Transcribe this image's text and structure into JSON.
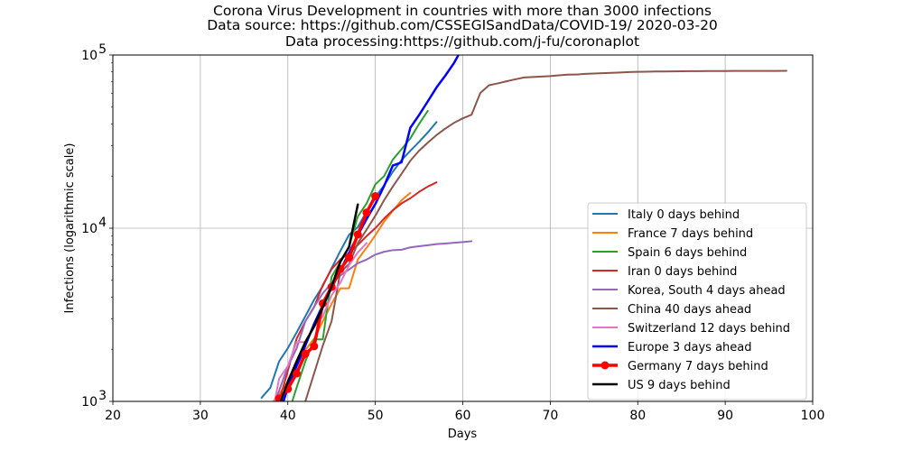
{
  "chart_data": {
    "type": "line",
    "title": [
      "Corona Virus Development in countries with more than 3000 infections",
      "Data source: https://github.com/CSSEGISandData/COVID-19/ 2020-03-20",
      "Data processing:https://github.com/j-fu/coronaplot"
    ],
    "xlabel": "Days",
    "ylabel": "Infections (logarithmic scale)",
    "xlim": [
      20,
      100
    ],
    "ylim": [
      1000,
      100000
    ],
    "yscale": "log",
    "xticks": [
      20,
      30,
      40,
      50,
      60,
      70,
      80,
      90,
      100
    ],
    "yticks": [
      {
        "value": 1000,
        "base": "10",
        "exp": "3"
      },
      {
        "value": 10000,
        "base": "10",
        "exp": "4"
      },
      {
        "value": 100000,
        "base": "10",
        "exp": "5"
      }
    ],
    "grid": true,
    "legend_position": "lower-right",
    "series": [
      {
        "name": "Italy 0 days behind",
        "color": "#1f77b4",
        "width": 2,
        "marker": false,
        "x": [
          37,
          38,
          39,
          40,
          41,
          42,
          43,
          44,
          45,
          46,
          47,
          48,
          49,
          50,
          51,
          52,
          53,
          54,
          55,
          56,
          57
        ],
        "y": [
          1050,
          1200,
          1700,
          2030,
          2500,
          3100,
          3860,
          4640,
          5880,
          7380,
          9170,
          10150,
          12460,
          15110,
          17660,
          21160,
          24750,
          27980,
          31510,
          35710,
          41040
        ]
      },
      {
        "name": "France 7 days behind",
        "color": "#ff7f0e",
        "width": 2,
        "marker": false,
        "x": [
          38,
          39,
          40,
          41,
          42,
          43,
          44,
          45,
          46,
          47,
          48,
          49,
          50,
          51,
          52,
          53,
          54
        ],
        "y": [
          950,
          1100,
          1300,
          1600,
          1980,
          2300,
          2900,
          3660,
          4500,
          4500,
          6600,
          7700,
          9100,
          10900,
          12600,
          14500,
          16000
        ]
      },
      {
        "name": "Spain 6 days behind",
        "color": "#2ca02c",
        "width": 2,
        "marker": false,
        "x": [
          40.5,
          41,
          42,
          43,
          44,
          45,
          46,
          47,
          48,
          49,
          50,
          51,
          52,
          53,
          54,
          55,
          56
        ],
        "y": [
          1000,
          1200,
          1700,
          2280,
          2280,
          5230,
          6390,
          7800,
          11700,
          13900,
          17900,
          19980,
          24900,
          28600,
          33000,
          40000,
          47600
        ]
      },
      {
        "name": "Iran 0 days behind",
        "color": "#d62728",
        "width": 2,
        "marker": false,
        "x": [
          39,
          40,
          41,
          42,
          43,
          44,
          45,
          46,
          47,
          48,
          49,
          50,
          51,
          52,
          53,
          54,
          55,
          56,
          57
        ],
        "y": [
          1000,
          1500,
          2300,
          2900,
          3500,
          4700,
          5800,
          6600,
          7200,
          8000,
          9000,
          10000,
          11360,
          12700,
          13900,
          14900,
          16200,
          17400,
          18400
        ]
      },
      {
        "name": "Korea, South 4 days ahead",
        "color": "#9467bd",
        "width": 2,
        "marker": false,
        "x": [
          38.5,
          39,
          40,
          41,
          42,
          43,
          44,
          45,
          46,
          47,
          48,
          49,
          50,
          51,
          52,
          53,
          54,
          55,
          56,
          57,
          58,
          59,
          60,
          61
        ],
        "y": [
          1000,
          1150,
          1590,
          2020,
          2900,
          3520,
          4210,
          4810,
          5330,
          5770,
          6280,
          6590,
          7040,
          7310,
          7470,
          7510,
          7750,
          7870,
          7980,
          8090,
          8160,
          8240,
          8320,
          8410
        ]
      },
      {
        "name": "China 40 days ahead",
        "color": "#8c564b",
        "width": 2,
        "marker": false,
        "x": [
          42,
          43,
          44,
          45,
          46,
          47,
          48,
          49,
          50,
          51,
          52,
          53,
          54,
          55,
          56,
          57,
          58,
          59,
          60,
          61,
          62,
          63,
          64,
          65,
          66,
          67,
          68,
          69,
          70,
          71,
          72,
          73,
          74,
          75,
          76,
          77,
          78,
          79,
          80,
          81,
          82,
          83,
          84,
          85,
          86,
          87,
          88,
          89,
          90,
          91,
          92,
          93,
          94,
          95,
          96,
          97
        ],
        "y": [
          1000,
          1450,
          2100,
          2900,
          5600,
          6200,
          8200,
          9800,
          11800,
          14500,
          17400,
          20600,
          24500,
          28000,
          31200,
          34500,
          37600,
          40600,
          43100,
          45200,
          60300,
          66900,
          68600,
          70500,
          72400,
          74200,
          74700,
          75100,
          75600,
          76400,
          77000,
          77200,
          77800,
          78200,
          78600,
          78900,
          79300,
          79800,
          80000,
          80100,
          80300,
          80400,
          80500,
          80600,
          80700,
          80700,
          80800,
          80800,
          80800,
          80900,
          80900,
          80900,
          81000,
          81000,
          81000,
          81100
        ]
      },
      {
        "name": "Switzerland 12 days behind",
        "color": "#e377c2",
        "width": 2,
        "marker": false,
        "x": [
          38.5,
          39,
          40,
          41,
          42,
          43,
          44,
          45,
          46,
          47,
          48,
          49
        ],
        "y": [
          1000,
          1350,
          1600,
          2200,
          2200,
          2700,
          3100,
          4100,
          4840,
          6110,
          7250,
          8200
        ]
      },
      {
        "name": "Europe 3 days ahead",
        "color": "#0000ff",
        "width": 2.5,
        "marker": false,
        "x": [
          39.5,
          40,
          41,
          42,
          43,
          44,
          45,
          46,
          47,
          48,
          49,
          50,
          51,
          52,
          53,
          54,
          55,
          56,
          57,
          58,
          59,
          59.5
        ],
        "y": [
          1000,
          1200,
          1600,
          2100,
          2800,
          3600,
          4500,
          5700,
          7200,
          9100,
          11300,
          13800,
          17500,
          23000,
          24000,
          38000,
          45000,
          54000,
          65000,
          76000,
          90000,
          100000
        ]
      },
      {
        "name": "Germany 7 days behind",
        "color": "#ff0000",
        "width": 3.5,
        "marker": true,
        "x": [
          39,
          40,
          41,
          42,
          43,
          44,
          45,
          46,
          47,
          48,
          49,
          50
        ],
        "y": [
          1040,
          1180,
          1450,
          1880,
          2080,
          3680,
          4580,
          5800,
          6780,
          9200,
          12300,
          15300
        ]
      },
      {
        "name": "US 9 days behind",
        "color": "#000000",
        "width": 2.5,
        "marker": false,
        "x": [
          39.2,
          40,
          41,
          42,
          43,
          44,
          45,
          46,
          47,
          48
        ],
        "y": [
          1000,
          1300,
          1700,
          2200,
          2700,
          3500,
          4600,
          6400,
          7800,
          13700
        ]
      }
    ]
  }
}
